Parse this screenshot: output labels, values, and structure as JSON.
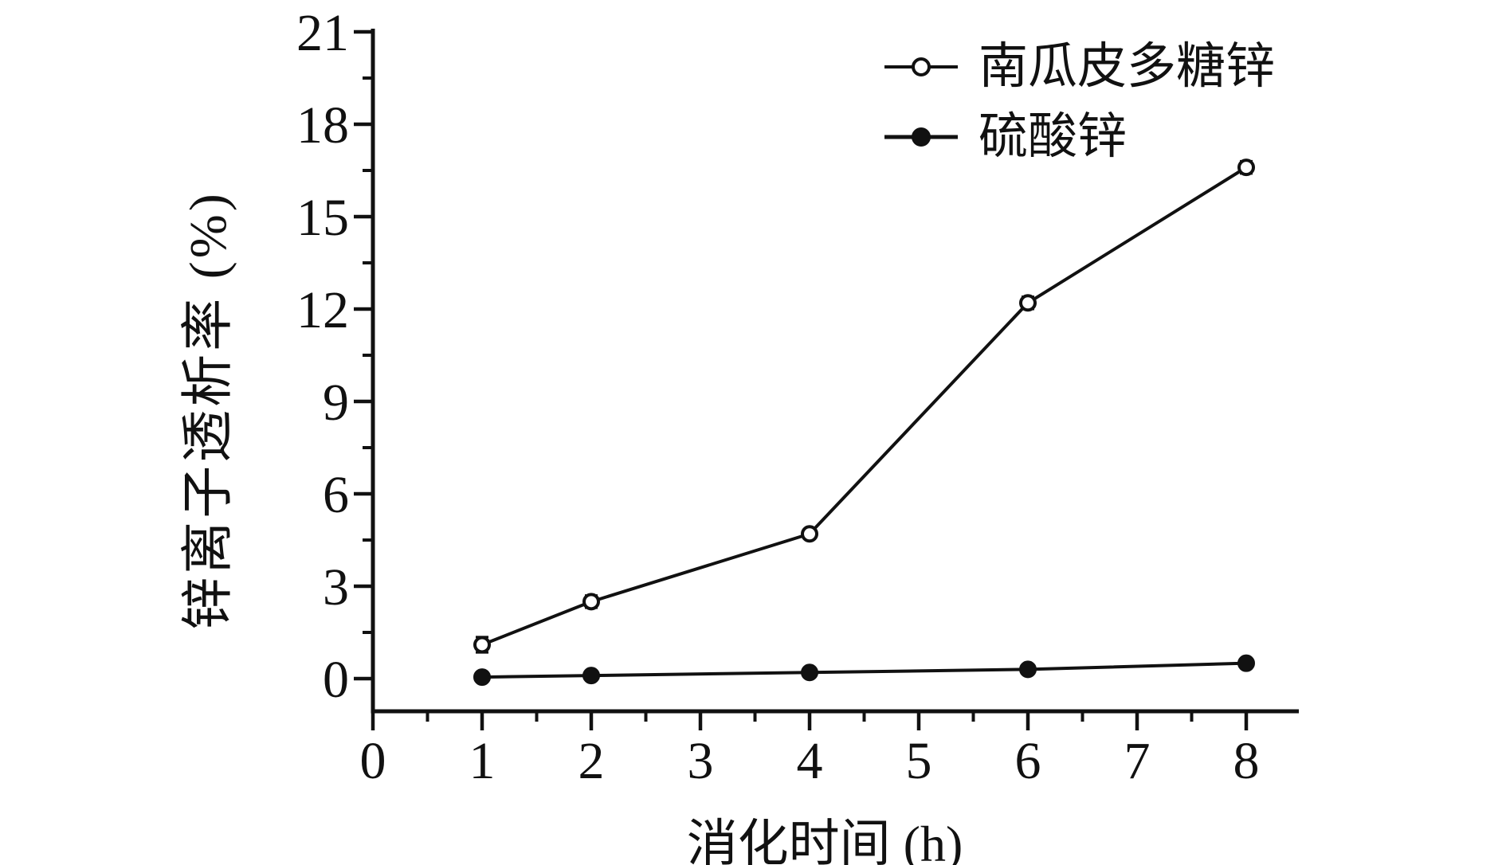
{
  "figure": {
    "background": "#ffffff",
    "ink_color": "#111111"
  },
  "chart_data": {
    "type": "line",
    "title": "",
    "xlabel": "消化时间 (h)",
    "ylabel": "锌离子透析率 (%)",
    "x": [
      1,
      2,
      4,
      6,
      8
    ],
    "series": [
      {
        "name": "南瓜皮多糖锌",
        "marker": "open-circle",
        "values": [
          1.1,
          2.5,
          4.7,
          12.2,
          16.6
        ],
        "yerr": [
          0.25,
          0.2,
          0.15,
          0.2,
          0.2
        ]
      },
      {
        "name": "硫酸锌",
        "marker": "filled-circle",
        "values": [
          0.05,
          0.1,
          0.2,
          0.3,
          0.5
        ],
        "yerr": [
          0.12,
          0.1,
          0.1,
          0.1,
          0.1
        ]
      }
    ],
    "x_ticks": [
      0,
      1,
      2,
      3,
      4,
      5,
      6,
      7,
      8
    ],
    "y_ticks": [
      0,
      3,
      6,
      9,
      12,
      15,
      18,
      21
    ],
    "x_minor_step": 0.5,
    "y_minor_step": 1.5,
    "xlim": [
      0,
      8.48
    ],
    "ylim": [
      -1.06,
      21
    ],
    "grid": false,
    "legend_position": "top-right"
  }
}
